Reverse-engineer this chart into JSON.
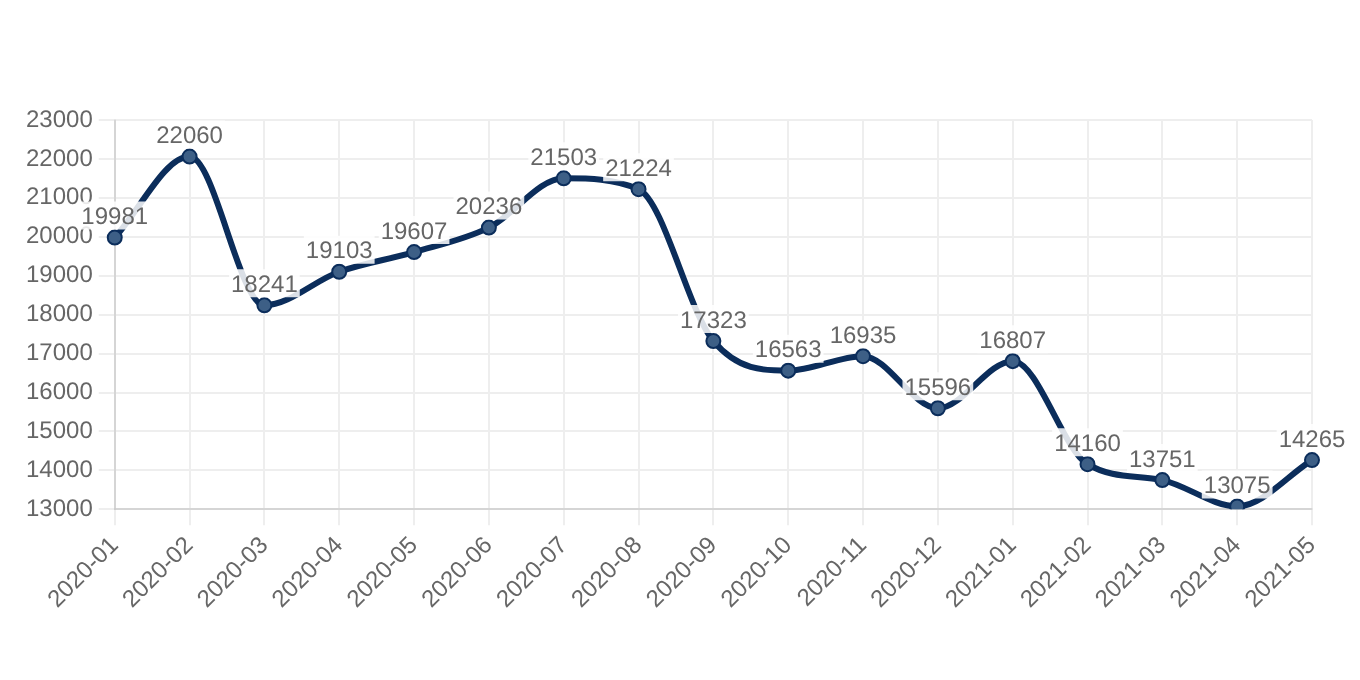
{
  "chart_data": {
    "type": "line",
    "categories": [
      "2020-01",
      "2020-02",
      "2020-03",
      "2020-04",
      "2020-05",
      "2020-06",
      "2020-07",
      "2020-08",
      "2020-09",
      "2020-10",
      "2020-11",
      "2020-12",
      "2021-01",
      "2021-02",
      "2021-03",
      "2021-04",
      "2021-05"
    ],
    "series": [
      {
        "color": "#0b2d5b",
        "values": [
          19981,
          22060,
          18241,
          19103,
          19607,
          20236,
          21503,
          21224,
          17323,
          16563,
          16935,
          15596,
          16807,
          14160,
          13751,
          13075,
          14265
        ]
      }
    ],
    "ylim": [
      13000,
      23000
    ],
    "yticks": [
      13000,
      14000,
      15000,
      16000,
      17000,
      18000,
      19000,
      20000,
      21000,
      22000,
      23000
    ],
    "grid": true,
    "legend": false,
    "marker": "circle",
    "line_style": "solid",
    "data_labels": true
  }
}
